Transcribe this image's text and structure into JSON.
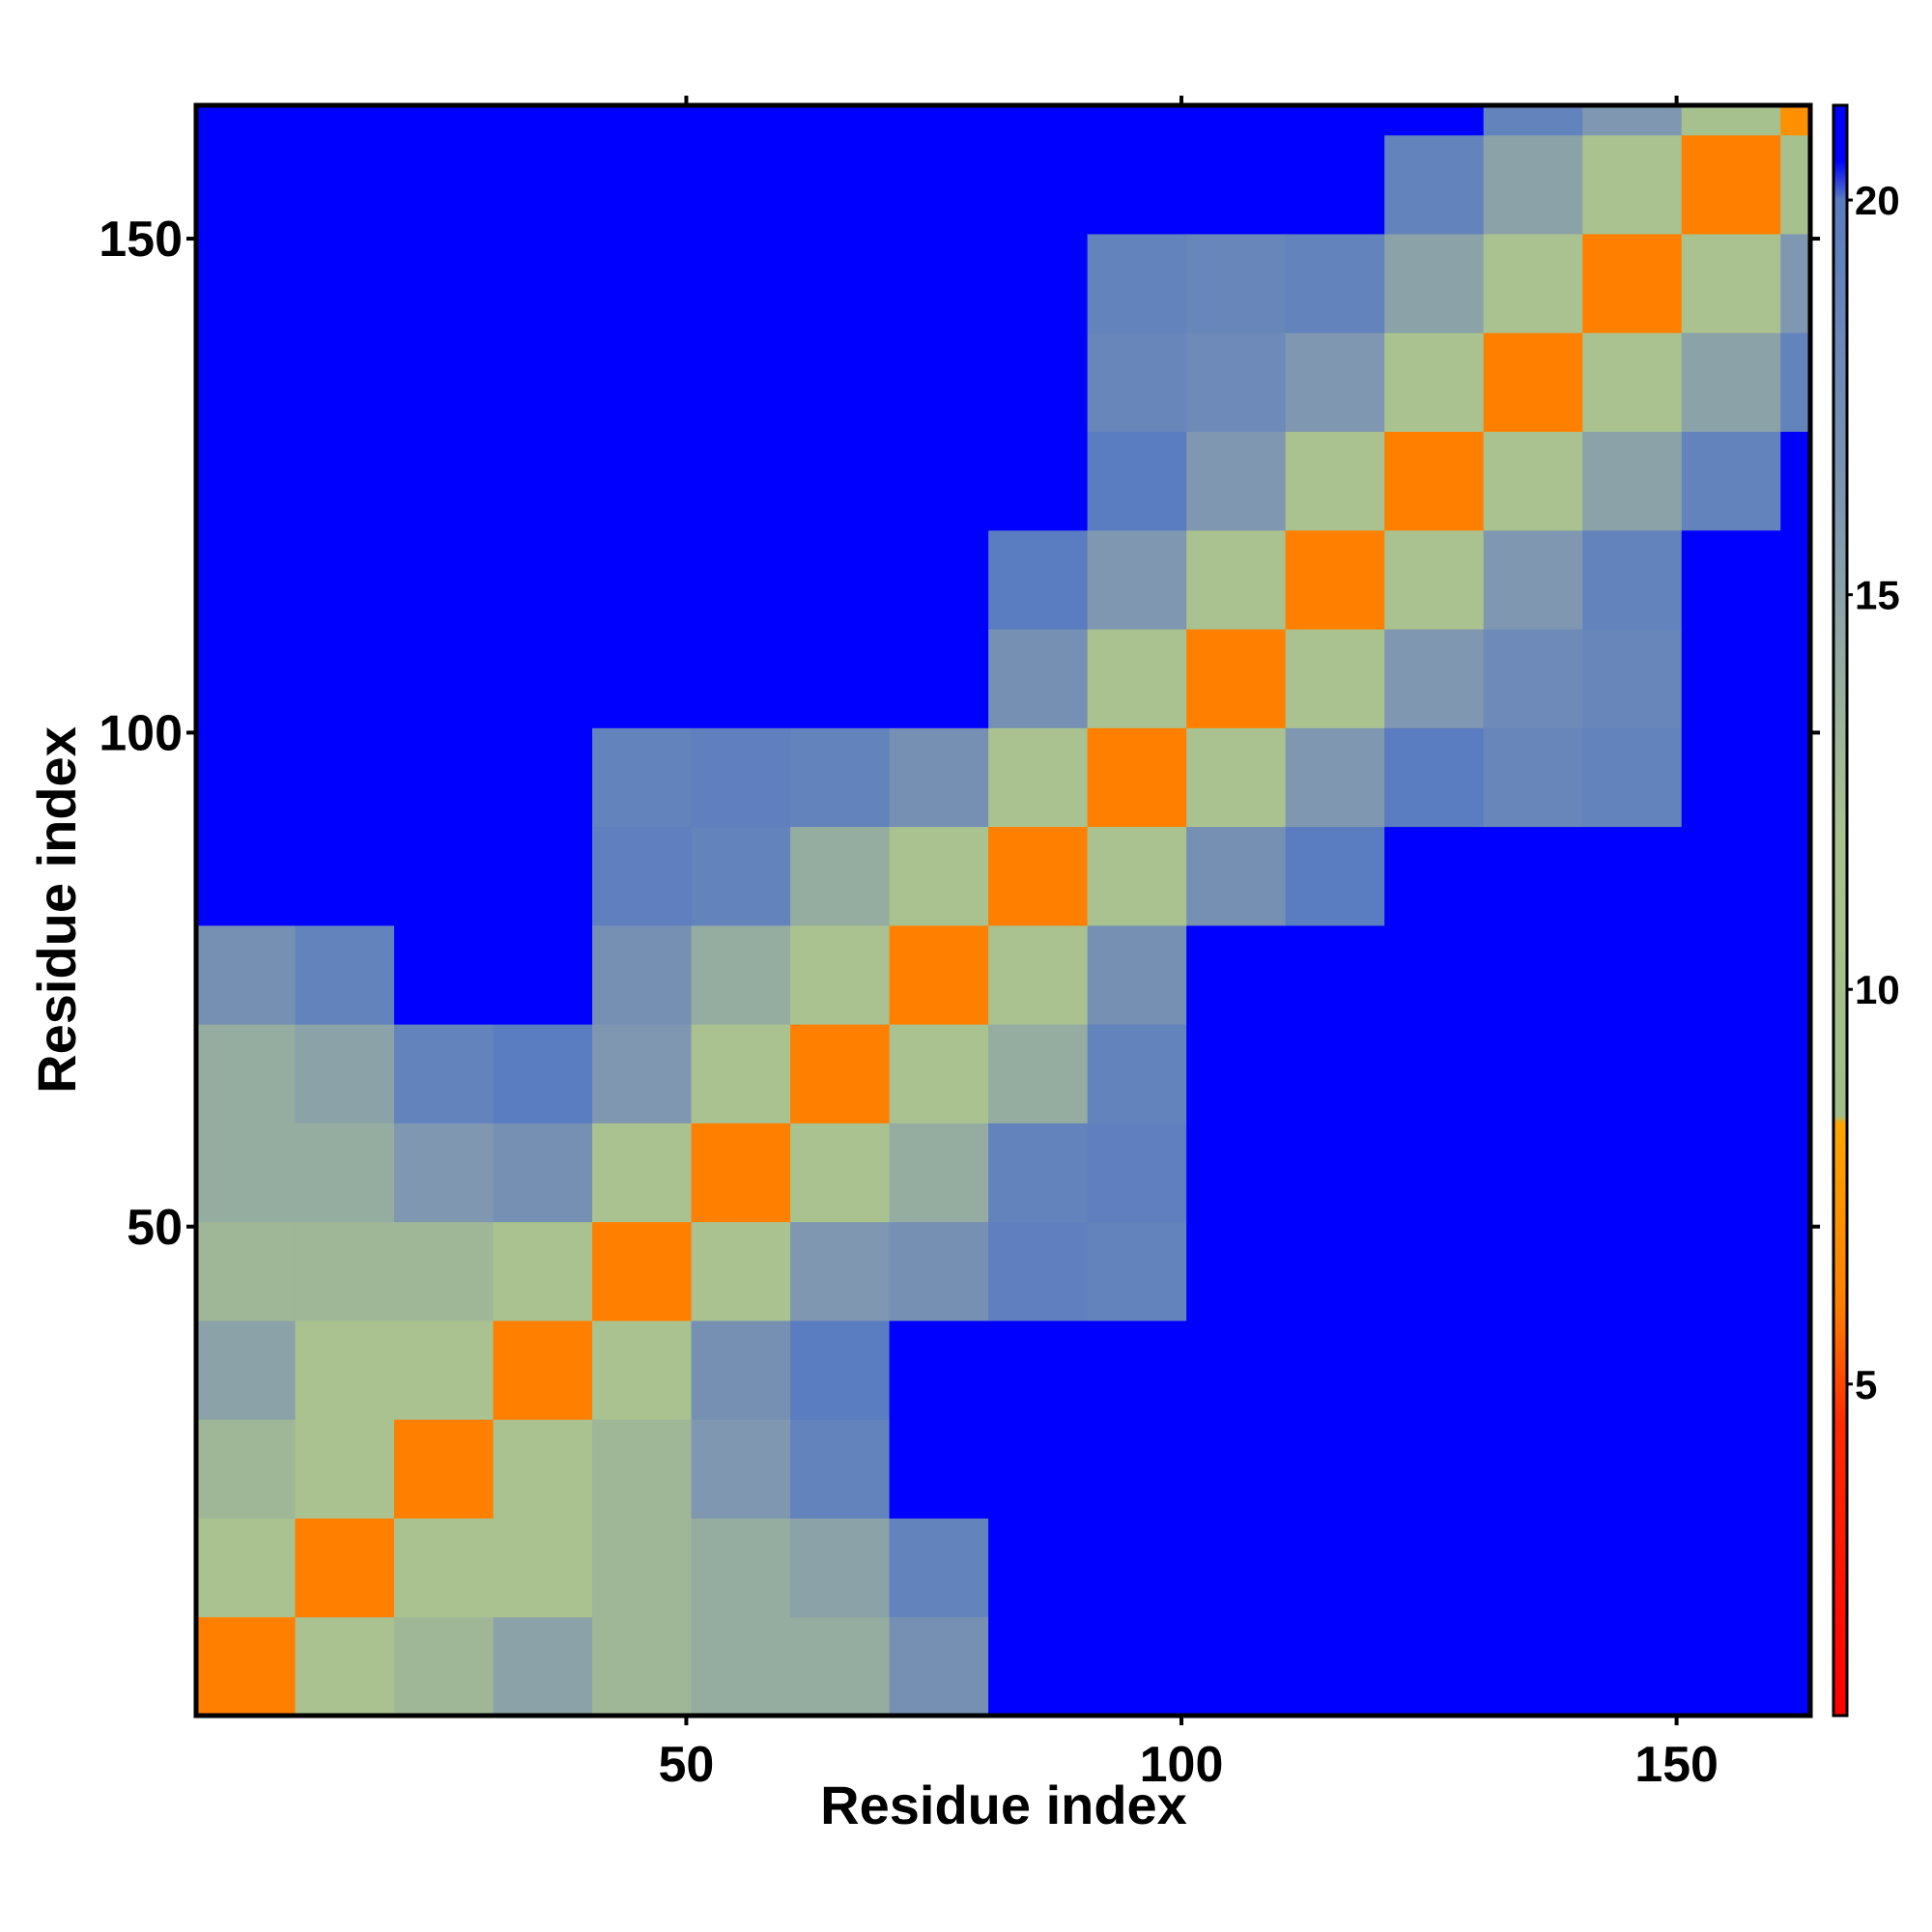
{
  "chart_data": {
    "type": "heatmap",
    "x_label": "Residue index",
    "y_label": "Residue index",
    "xbins": [
      0.5,
      10.5,
      20.5,
      30.5,
      40.5,
      50.5,
      60.5,
      70.5,
      80.5,
      90.5,
      100.5,
      110.5,
      120.5,
      130.5,
      140.5,
      150.5,
      160.5,
      163.5
    ],
    "ybins": [
      0.5,
      10.5,
      20.5,
      30.5,
      40.5,
      50.5,
      60.5,
      70.5,
      80.5,
      90.5,
      100.5,
      110.5,
      120.5,
      130.5,
      140.5,
      150.5,
      160.5,
      163.5
    ],
    "xlim": [
      0.5,
      163.5
    ],
    "ylim": [
      0.5,
      163.5
    ],
    "xticks": [
      50,
      100,
      150
    ],
    "yticks": [
      50,
      100,
      150
    ],
    "clim": [
      0.8,
      21.2
    ],
    "cticks": [
      5,
      10,
      15,
      20
    ],
    "colorscale": [
      [
        0.8,
        "#ff0000"
      ],
      [
        4.5,
        "#ff2a00"
      ],
      [
        6,
        "#ff7f00"
      ],
      [
        8.3,
        "#ffa500"
      ],
      [
        8.4,
        "#9fbf8a"
      ],
      [
        12,
        "#a9c28f"
      ],
      [
        16,
        "#7f97b0"
      ],
      [
        20,
        "#5a7cc0"
      ],
      [
        20.5,
        "#0000ff"
      ]
    ],
    "values": [
      [
        6,
        12,
        13,
        15,
        13,
        14,
        14,
        17,
        21,
        21,
        21,
        21,
        21,
        21,
        21,
        21,
        21
      ],
      [
        12,
        6,
        12,
        12,
        13,
        14,
        15,
        19,
        21,
        21,
        21,
        21,
        21,
        21,
        21,
        21,
        21
      ],
      [
        13,
        12,
        6,
        12,
        13,
        16,
        19,
        21,
        21,
        21,
        21,
        21,
        21,
        21,
        21,
        21,
        21
      ],
      [
        15,
        12,
        12,
        6,
        12,
        17,
        20,
        21,
        21,
        21,
        21,
        21,
        21,
        21,
        21,
        21,
        21
      ],
      [
        13,
        13,
        13,
        12,
        6,
        12,
        16,
        17,
        19.5,
        19,
        21,
        21,
        21,
        21,
        21,
        21,
        21
      ],
      [
        14,
        14,
        16,
        17,
        12,
        6,
        12,
        14,
        19,
        19.5,
        21,
        21,
        21,
        21,
        21,
        21,
        21
      ],
      [
        14,
        15,
        19,
        20,
        16,
        12,
        6,
        12,
        14,
        19,
        21,
        21,
        21,
        21,
        21,
        21,
        21
      ],
      [
        17,
        19,
        21,
        21,
        17,
        14,
        12,
        6,
        12,
        17,
        21,
        21,
        21,
        21,
        21,
        21,
        21
      ],
      [
        21,
        21,
        21,
        21,
        19.5,
        19,
        14,
        12,
        6,
        12,
        17,
        20,
        21,
        21,
        21,
        21,
        21
      ],
      [
        21,
        21,
        21,
        21,
        19,
        19.5,
        19,
        17,
        12,
        6,
        12,
        16,
        20,
        18.5,
        19,
        21,
        21
      ],
      [
        21,
        21,
        21,
        21,
        21,
        21,
        21,
        21,
        17,
        12,
        6,
        12,
        16,
        18,
        18.5,
        21,
        21
      ],
      [
        21,
        21,
        21,
        21,
        21,
        21,
        21,
        21,
        20,
        16,
        12,
        6,
        12,
        16,
        19,
        21,
        21
      ],
      [
        21,
        21,
        21,
        21,
        21,
        21,
        21,
        21,
        21,
        20,
        16,
        12,
        6,
        12,
        15,
        19,
        21
      ],
      [
        21,
        21,
        21,
        21,
        21,
        21,
        21,
        21,
        21,
        18.5,
        18,
        16,
        12,
        6,
        12,
        15,
        19
      ],
      [
        21,
        21,
        21,
        21,
        21,
        21,
        21,
        21,
        21,
        19,
        18.5,
        19,
        15,
        12,
        6,
        12,
        16
      ],
      [
        21,
        21,
        21,
        21,
        21,
        21,
        21,
        21,
        21,
        21,
        21,
        21,
        19,
        15,
        12,
        6,
        11
      ],
      [
        21,
        21,
        21,
        21,
        21,
        21,
        21,
        21,
        21,
        21,
        21,
        21,
        21,
        19,
        16,
        11,
        7
      ]
    ]
  }
}
